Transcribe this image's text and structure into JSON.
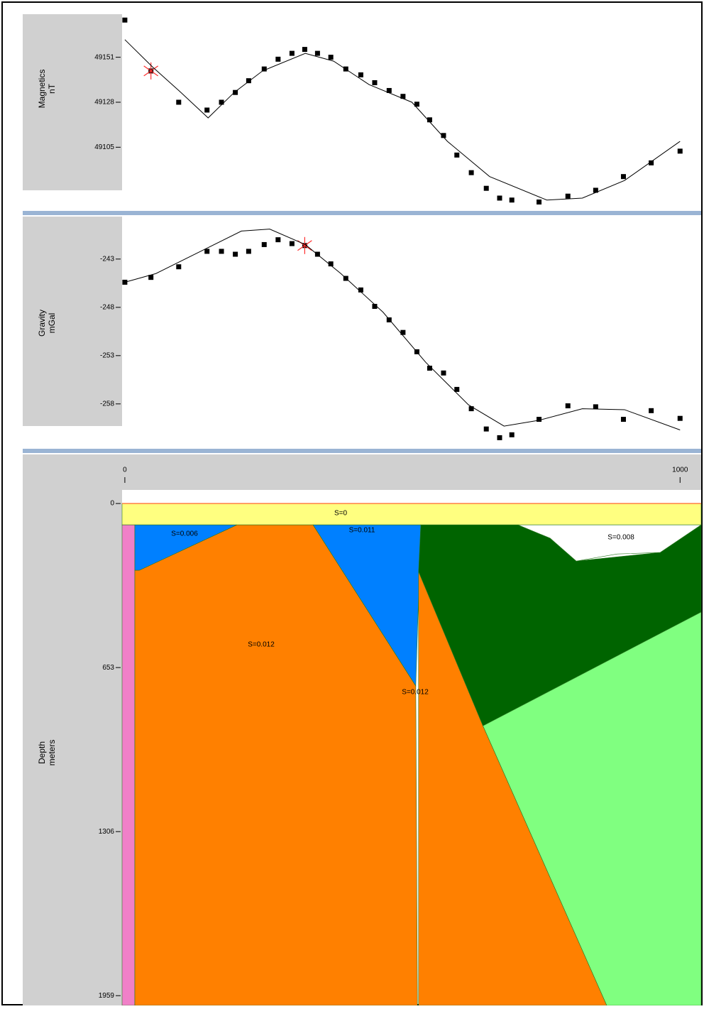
{
  "chart_data": [
    {
      "type": "profile",
      "y_label": [
        "Magnetics",
        "nT"
      ],
      "xlim": [
        -5,
        1038
      ],
      "ylim": [
        49075,
        49173
      ],
      "yticks": [
        49151,
        49128,
        49105
      ],
      "series": [
        {
          "type": "points",
          "color": "#000000",
          "highlighted": 1,
          "highlight_color": "#ff3030",
          "x": [
            0,
            47,
            97,
            148,
            174,
            199,
            223,
            251,
            276,
            301,
            324,
            347,
            371,
            398,
            425,
            450,
            476,
            501,
            526,
            549,
            574,
            598,
            624,
            651,
            675,
            697,
            746,
            798,
            848,
            898,
            948,
            1000
          ],
          "values": [
            49170,
            49144,
            49128,
            49124,
            49128,
            49133,
            49139,
            49145,
            49150,
            49153,
            49155,
            49153,
            49151,
            49145,
            49142,
            49138,
            49134,
            49131,
            49127,
            49119,
            49111,
            49101,
            49092,
            49084,
            49079,
            49078,
            49077,
            49080,
            49083,
            49090,
            49097,
            49103
          ]
        },
        {
          "type": "line",
          "color": "#000000",
          "x": [
            0,
            50,
            101,
            150,
            197,
            248,
            325,
            376,
            440,
            517,
            581,
            657,
            760,
            824,
            900,
            1000
          ],
          "values": [
            49160,
            49146,
            49133,
            49120,
            49133,
            49144,
            49153,
            49149,
            49137,
            49128,
            49108,
            49090,
            49078,
            49079,
            49088,
            49108
          ]
        }
      ]
    },
    {
      "type": "profile",
      "y_label": [
        "Gravity",
        "mGal"
      ],
      "xlim": [
        -5,
        1038
      ],
      "ylim": [
        -262.5,
        -238.6
      ],
      "yticks": [
        -243,
        -248,
        -253,
        -258
      ],
      "series": [
        {
          "type": "points",
          "color": "#000000",
          "highlighted": 10,
          "highlight_color": "#ff3030",
          "x": [
            0,
            47,
            97,
            148,
            174,
            199,
            223,
            251,
            276,
            301,
            324,
            347,
            371,
            398,
            425,
            450,
            476,
            501,
            526,
            549,
            574,
            598,
            624,
            651,
            675,
            697,
            746,
            798,
            848,
            898,
            948,
            1000
          ],
          "values": [
            -245.4,
            -244.9,
            -243.8,
            -242.2,
            -242.2,
            -242.5,
            -242.2,
            -241.5,
            -241.0,
            -241.4,
            -241.6,
            -242.5,
            -243.5,
            -245.0,
            -246.2,
            -247.9,
            -249.3,
            -250.6,
            -252.6,
            -254.3,
            -254.8,
            -256.5,
            -258.5,
            -260.6,
            -261.5,
            -261.2,
            -259.6,
            -258.2,
            -258.3,
            -259.6,
            -258.7,
            -259.5
          ]
        },
        {
          "type": "line",
          "color": "#000000",
          "x": [
            0,
            56,
            133,
            210,
            261,
            325,
            389,
            465,
            542,
            619,
            683,
            746,
            824,
            900,
            1000
          ],
          "values": [
            -245.4,
            -244.5,
            -242.3,
            -240.1,
            -239.9,
            -241.5,
            -244.5,
            -248.5,
            -253.7,
            -258.1,
            -260.3,
            -259.7,
            -258.5,
            -258.6,
            -260.7
          ]
        }
      ]
    },
    {
      "type": "section",
      "y_label": [
        "Depth",
        "meters"
      ],
      "xlim": [
        -5,
        1038
      ],
      "ylim": [
        -54,
        1998
      ],
      "y_inverted": true,
      "xticks": [
        0,
        1000
      ],
      "yticks": [
        0,
        653,
        1306,
        1959
      ],
      "surface_color": "#ff8040",
      "bodies": [
        {
          "label": "S=0",
          "color": "#ffff80",
          "x": [
            -5,
            1038,
            1038,
            -5
          ],
          "depth": [
            0,
            0,
            85,
            85
          ]
        },
        {
          "color": "#f080c8",
          "x": [
            -5,
            18,
            18,
            -5
          ],
          "depth": [
            85,
            85,
            1998,
            1998
          ]
        },
        {
          "label": "S=0.006",
          "color": "#0080ff",
          "x": [
            18,
            202,
            26,
            18
          ],
          "depth": [
            85,
            85,
            266,
            266
          ]
        },
        {
          "label": "S=0.012",
          "color": "#ff8000",
          "x": [
            26,
            202,
            339,
            524,
            527,
            18,
            18
          ],
          "depth": [
            266,
            85,
            85,
            726,
            1998,
            1998,
            266
          ]
        },
        {
          "label": "S=0.011",
          "color": "#0080ff",
          "x": [
            339,
            533,
            524
          ],
          "depth": [
            85,
            85,
            726
          ]
        },
        {
          "label": "S=0.012",
          "color": "#ff8000",
          "x": [
            529,
            645,
            868,
            529
          ],
          "depth": [
            271,
            885,
            1998,
            1998
          ]
        },
        {
          "color": "#006400",
          "x": [
            533,
            708,
            766,
            813,
            964,
            1038,
            1038,
            645,
            529
          ],
          "depth": [
            85,
            85,
            138,
            229,
            195,
            85,
            432,
            885,
            271
          ]
        },
        {
          "label": "S=0.008",
          "color": "#ffffff",
          "x": [
            708,
            1038,
            964,
            887,
            813,
            766
          ],
          "depth": [
            85,
            85,
            195,
            201,
            229,
            138
          ]
        },
        {
          "color": "#80ff80",
          "x": [
            645,
            1038,
            1038,
            868
          ],
          "depth": [
            885,
            432,
            1998,
            1998
          ]
        }
      ]
    }
  ]
}
